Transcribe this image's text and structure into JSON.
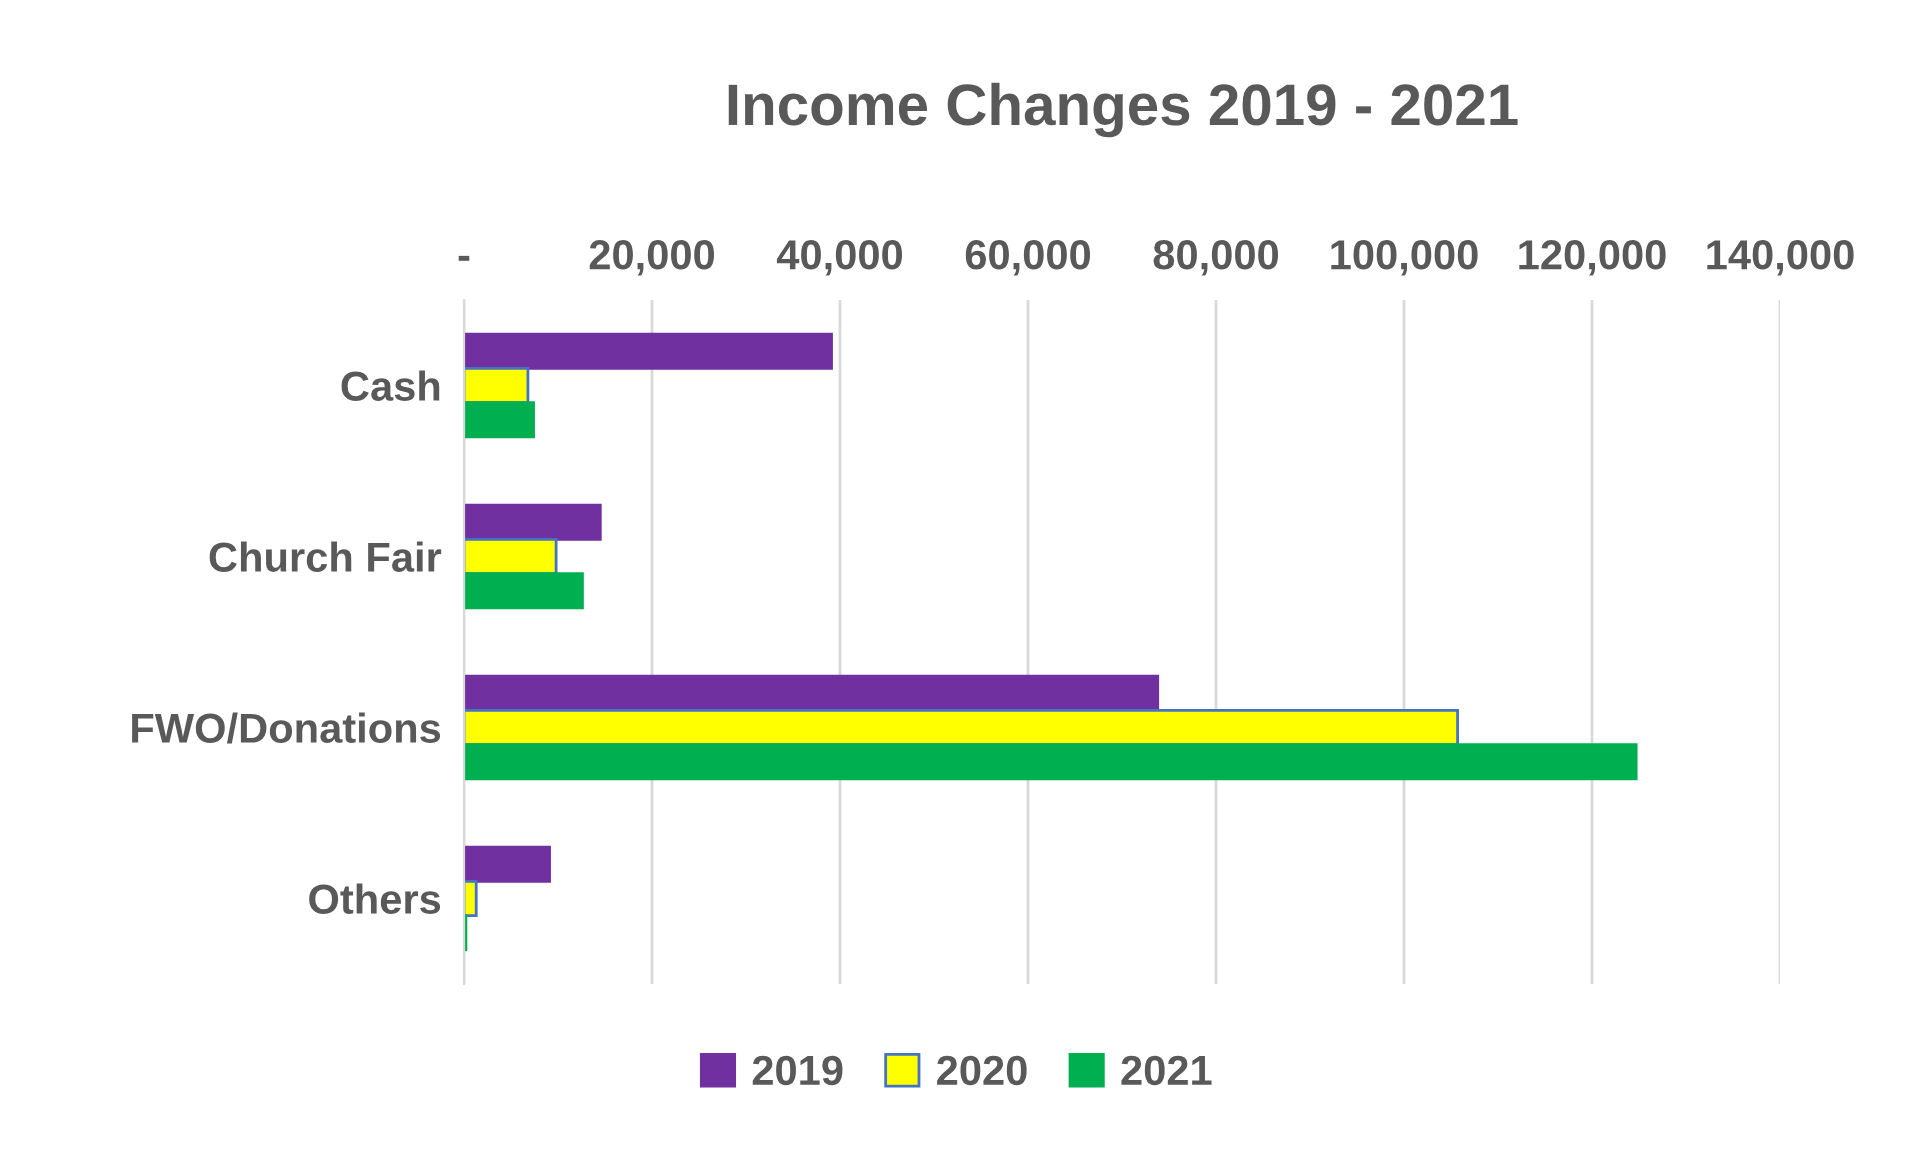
{
  "chart_data": {
    "type": "bar",
    "orientation": "horizontal",
    "title": "Income Changes 2019 - 2021",
    "categories": [
      "Cash",
      "Church Fair",
      "FWO/Donations",
      "Others"
    ],
    "series": [
      {
        "name": "2019",
        "color": "#7030a0",
        "values": [
          39100,
          14500,
          73800,
          9100
        ]
      },
      {
        "name": "2020",
        "color": "#ffff00",
        "values": [
          6800,
          9800,
          105700,
          1300
        ]
      },
      {
        "name": "2021",
        "color": "#00b050",
        "values": [
          7400,
          12600,
          124700,
          200
        ]
      }
    ],
    "xlim": [
      0,
      140000
    ],
    "xticks": [
      {
        "value": 0,
        "label": "-"
      },
      {
        "value": 20000,
        "label": "20,000"
      },
      {
        "value": 40000,
        "label": "40,000"
      },
      {
        "value": 60000,
        "label": "60,000"
      },
      {
        "value": 80000,
        "label": "80,000"
      },
      {
        "value": 100000,
        "label": "100,000"
      },
      {
        "value": 120000,
        "label": "120,000"
      },
      {
        "value": 140000,
        "label": "140,000"
      }
    ],
    "grid": "x",
    "legend": "bottom"
  }
}
